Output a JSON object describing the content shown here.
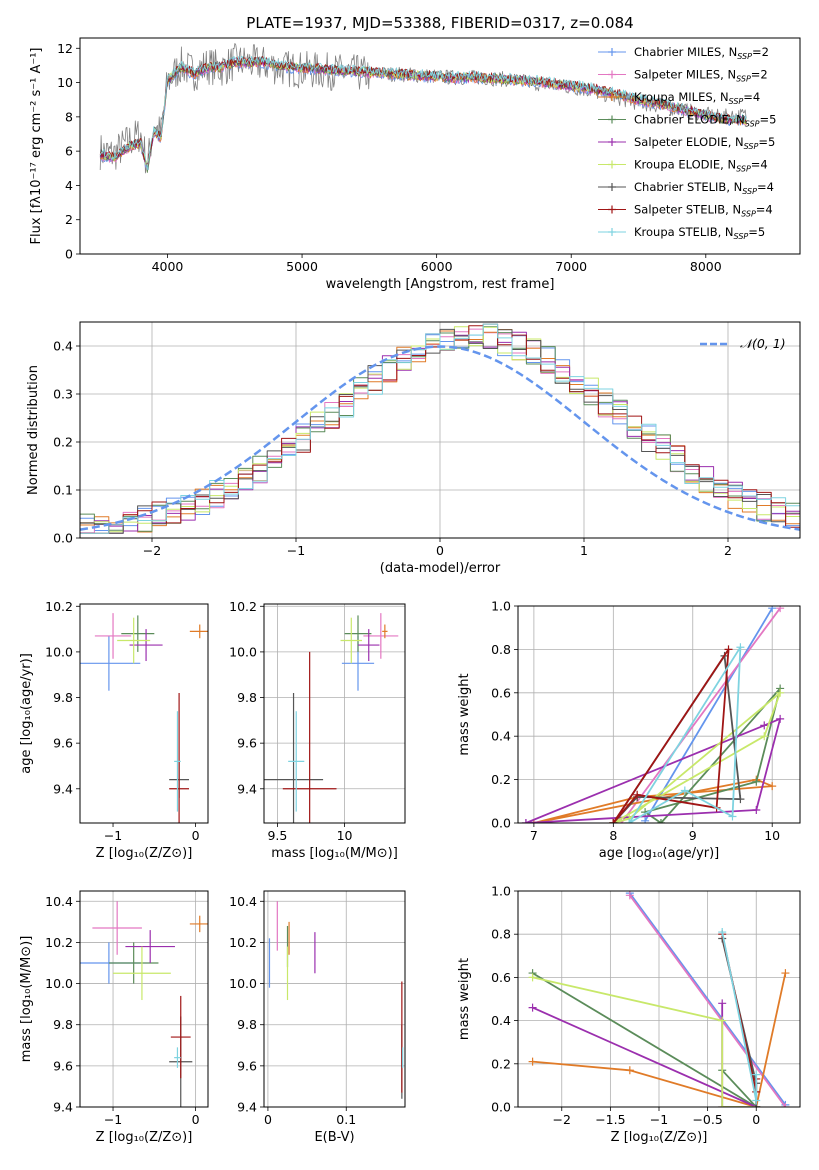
{
  "figure_title": "PLATE=1937, MJD=53388, FIBERID=0317, z=0.084",
  "series_colors": [
    "#6495ed",
    "#e377c2",
    "#e07b28",
    "#5b8c5a",
    "#9b2fae",
    "#c8e86a",
    "#555555",
    "#a01515",
    "#7ed3e0"
  ],
  "chart_data": [
    {
      "id": "spectrum",
      "type": "line",
      "title": "PLATE=1937, MJD=53388, FIBERID=0317, z=0.084",
      "xlabel": "wavelength [Angstrom, rest frame]",
      "ylabel": "Flux [fλ10⁻¹⁷ erg cm⁻² s⁻¹ A⁻¹]",
      "xlim": [
        3350,
        8700
      ],
      "ylim": [
        0,
        12.6
      ],
      "xticks": [
        4000,
        5000,
        6000,
        7000,
        8000
      ],
      "yticks": [
        0,
        2,
        4,
        6,
        8,
        10,
        12
      ],
      "grid": false,
      "legend_position": "top-right",
      "data_color": "#808080",
      "x": [
        3500,
        3600,
        3700,
        3800,
        3850,
        3900,
        3950,
        4000,
        4100,
        4200,
        4300,
        4400,
        4500,
        4700,
        4900,
        5100,
        5300,
        5500,
        5700,
        5900,
        6100,
        6300,
        6500,
        6700,
        6900,
        7100,
        7300,
        7500,
        7700,
        7900,
        8100,
        8300
      ],
      "data_y": [
        6.0,
        5.8,
        6.5,
        7.0,
        5.2,
        7.5,
        7.0,
        10.0,
        11.0,
        10.6,
        11.0,
        10.8,
        11.2,
        11.1,
        10.8,
        10.7,
        10.6,
        10.5,
        10.5,
        10.4,
        10.3,
        10.3,
        10.2,
        10.0,
        9.8,
        9.6,
        9.2,
        8.8,
        8.6,
        8.3,
        8.0,
        8.1
      ],
      "model_y": [
        5.8,
        5.6,
        6.2,
        6.5,
        5.0,
        7.2,
        6.8,
        10.1,
        10.9,
        10.5,
        10.9,
        10.9,
        11.2,
        11.2,
        10.9,
        10.8,
        10.7,
        10.6,
        10.5,
        10.4,
        10.3,
        10.3,
        10.2,
        10.1,
        9.9,
        9.7,
        9.4,
        9.0,
        8.7,
        8.3,
        7.9,
        7.8
      ],
      "legend": [
        {
          "label": "Chabrier MILES, N",
          "sub": "SSP",
          "eq": "=2"
        },
        {
          "label": "Salpeter MILES, N",
          "sub": "SSP",
          "eq": "=2"
        },
        {
          "label": "Kroupa MILES, N",
          "sub": "SSP",
          "eq": "=4"
        },
        {
          "label": "Chabrier ELODIE, N",
          "sub": "SSP",
          "eq": "=5"
        },
        {
          "label": "Salpeter ELODIE, N",
          "sub": "SSP",
          "eq": "=5"
        },
        {
          "label": "Kroupa ELODIE, N",
          "sub": "SSP",
          "eq": "=4"
        },
        {
          "label": "Chabrier STELIB, N",
          "sub": "SSP",
          "eq": "=4"
        },
        {
          "label": "Salpeter STELIB, N",
          "sub": "SSP",
          "eq": "=4"
        },
        {
          "label": "Kroupa STELIB, N",
          "sub": "SSP",
          "eq": "=5"
        }
      ]
    },
    {
      "id": "residuals",
      "type": "line",
      "xlabel": "(data-model)/error",
      "ylabel": "Normed distribution",
      "xlim": [
        -2.5,
        2.5
      ],
      "ylim": [
        0,
        0.45
      ],
      "xticks": [
        -2,
        -1,
        0,
        1,
        2
      ],
      "yticks": [
        0.0,
        0.1,
        0.2,
        0.3,
        0.4
      ],
      "grid": true,
      "legend": [
        {
          "label": "𝒩(0, 1)",
          "color": "#6495ed"
        }
      ],
      "legend_position": "top-right"
    },
    {
      "id": "age_vs_Z",
      "type": "scatter",
      "xlabel": "Z [log₁₀(Z/Z⊙)]",
      "ylabel": "age  [log₁₀(age/yr)]",
      "xlim": [
        -1.4,
        0.15
      ],
      "ylim": [
        9.25,
        10.21
      ],
      "xticks": [
        -1,
        0
      ],
      "yticks": [
        9.4,
        9.6,
        9.8,
        10.0,
        10.2
      ],
      "grid": false,
      "points": [
        {
          "x": -1.05,
          "y": 9.95,
          "xerr": 0.38,
          "yerr": 0.12
        },
        {
          "x": -1.0,
          "y": 10.07,
          "xerr": 0.22,
          "yerr": 0.1
        },
        {
          "x": 0.05,
          "y": 10.09,
          "xerr": 0.12,
          "yerr": 0.03
        },
        {
          "x": -0.7,
          "y": 10.08,
          "xerr": 0.2,
          "yerr": 0.08
        },
        {
          "x": -0.6,
          "y": 10.03,
          "xerr": 0.2,
          "yerr": 0.07
        },
        {
          "x": -0.75,
          "y": 10.05,
          "xerr": 0.2,
          "yerr": 0.1
        },
        {
          "x": -0.2,
          "y": 9.44,
          "xerr": 0.12,
          "yerr": 0.08
        },
        {
          "x": -0.2,
          "y": 9.4,
          "xerr": 0.12,
          "yerr": 0.42
        },
        {
          "x": -0.22,
          "y": 9.52,
          "xerr": 0.04,
          "yerr": 0.22
        }
      ]
    },
    {
      "id": "age_vs_mass",
      "type": "scatter",
      "xlabel": "mass [log₁₀(M/M⊙)]",
      "ylabel": "",
      "xlim": [
        9.4,
        10.45
      ],
      "ylim": [
        9.25,
        10.21
      ],
      "xticks": [
        9.5,
        10.0
      ],
      "yticks": [
        9.4,
        9.6,
        9.8,
        10.0,
        10.2
      ],
      "grid": true,
      "points": [
        {
          "x": 10.1,
          "y": 9.95,
          "xerr": 0.12,
          "yerr": 0.12
        },
        {
          "x": 10.27,
          "y": 10.07,
          "xerr": 0.13,
          "yerr": 0.1
        },
        {
          "x": 10.3,
          "y": 10.09,
          "xerr": 0.02,
          "yerr": 0.03
        },
        {
          "x": 10.1,
          "y": 10.08,
          "xerr": 0.1,
          "yerr": 0.08
        },
        {
          "x": 10.18,
          "y": 10.03,
          "xerr": 0.08,
          "yerr": 0.07
        },
        {
          "x": 10.05,
          "y": 10.05,
          "xerr": 0.08,
          "yerr": 0.1
        },
        {
          "x": 9.62,
          "y": 9.44,
          "xerr": 0.22,
          "yerr": 0.38
        },
        {
          "x": 9.74,
          "y": 9.4,
          "xerr": 0.2,
          "yerr": 0.6
        },
        {
          "x": 9.64,
          "y": 9.52,
          "xerr": 0.06,
          "yerr": 0.22
        }
      ]
    },
    {
      "id": "massweight_vs_age",
      "type": "line",
      "xlabel": "age  [log₁₀(age/yr)]",
      "ylabel": "mass weight",
      "xlim": [
        6.8,
        10.35
      ],
      "ylim": [
        0,
        1.0
      ],
      "xticks": [
        7,
        8,
        9,
        10
      ],
      "yticks": [
        0.0,
        0.2,
        0.4,
        0.6,
        0.8,
        1.0
      ],
      "grid": true,
      "series": [
        {
          "x": [
            8.4,
            10.0
          ],
          "y": [
            0.01,
            0.99
          ]
        },
        {
          "x": [
            8.1,
            10.1
          ],
          "y": [
            0.0,
            0.99
          ]
        },
        {
          "x": [
            7.0,
            9.8,
            10.0,
            8.3,
            7.0
          ],
          "y": [
            0.0,
            0.2,
            0.17,
            0.12,
            0.0
          ]
        },
        {
          "x": [
            8.6,
            10.1,
            9.8,
            8.4,
            8.6
          ],
          "y": [
            0.0,
            0.62,
            0.19,
            0.05,
            0.0
          ]
        },
        {
          "x": [
            6.9,
            9.8,
            10.1,
            9.9,
            6.9
          ],
          "y": [
            0.0,
            0.06,
            0.48,
            0.45,
            0.0
          ]
        },
        {
          "x": [
            8.0,
            9.9,
            10.1,
            8.2,
            8.0
          ],
          "y": [
            0.0,
            0.4,
            0.6,
            0.02,
            0.0
          ]
        },
        {
          "x": [
            8.0,
            9.4,
            9.6,
            8.3,
            8.0
          ],
          "y": [
            0.0,
            0.77,
            0.11,
            0.12,
            0.0
          ]
        },
        {
          "x": [
            8.0,
            9.45,
            9.3,
            8.3,
            8.0
          ],
          "y": [
            0.0,
            0.8,
            0.07,
            0.13,
            0.0
          ]
        },
        {
          "x": [
            8.2,
            9.6,
            9.5,
            8.9,
            8.2
          ],
          "y": [
            0.0,
            0.81,
            0.03,
            0.15,
            0.0
          ]
        }
      ]
    },
    {
      "id": "mass_vs_Z",
      "type": "scatter",
      "xlabel": "Z [log₁₀(Z/Z⊙)]",
      "ylabel": "mass [log₁₀(M/M⊙)]",
      "xlim": [
        -1.4,
        0.15
      ],
      "ylim": [
        9.4,
        10.45
      ],
      "xticks": [
        -1,
        0
      ],
      "yticks": [
        9.4,
        9.6,
        9.8,
        10.0,
        10.2,
        10.4
      ],
      "grid": true,
      "points": [
        {
          "x": -1.05,
          "y": 10.1,
          "xerr": 0.38,
          "yerr": 0.1
        },
        {
          "x": -0.95,
          "y": 10.27,
          "xerr": 0.3,
          "yerr": 0.13
        },
        {
          "x": 0.05,
          "y": 10.29,
          "xerr": 0.12,
          "yerr": 0.04
        },
        {
          "x": -0.75,
          "y": 10.1,
          "xerr": 0.3,
          "yerr": 0.1
        },
        {
          "x": -0.55,
          "y": 10.18,
          "xerr": 0.3,
          "yerr": 0.08
        },
        {
          "x": -0.65,
          "y": 10.05,
          "xerr": 0.35,
          "yerr": 0.13
        },
        {
          "x": -0.18,
          "y": 9.62,
          "xerr": 0.14,
          "yerr": 0.22
        },
        {
          "x": -0.18,
          "y": 9.74,
          "xerr": 0.12,
          "yerr": 0.2
        },
        {
          "x": -0.22,
          "y": 9.64,
          "xerr": 0.04,
          "yerr": 0.05
        }
      ]
    },
    {
      "id": "mass_vs_ebv",
      "type": "scatter",
      "xlabel": "E(B-V)",
      "ylabel": "",
      "xlim": [
        -0.005,
        0.175
      ],
      "ylim": [
        9.4,
        10.45
      ],
      "xticks": [
        0.0,
        0.1
      ],
      "yticks": [
        9.4,
        9.6,
        9.8,
        10.0,
        10.2,
        10.4
      ],
      "grid": true,
      "points": [
        {
          "x": 0.002,
          "y": 10.1,
          "xerr": 0,
          "yerr": 0.12
        },
        {
          "x": 0.012,
          "y": 10.28,
          "xerr": 0,
          "yerr": 0.12
        },
        {
          "x": 0.027,
          "y": 10.22,
          "xerr": 0,
          "yerr": 0.08
        },
        {
          "x": 0.025,
          "y": 10.18,
          "xerr": 0,
          "yerr": 0.1
        },
        {
          "x": 0.06,
          "y": 10.15,
          "xerr": 0,
          "yerr": 0.1
        },
        {
          "x": 0.025,
          "y": 10.05,
          "xerr": 0,
          "yerr": 0.13
        },
        {
          "x": 0.171,
          "y": 9.62,
          "xerr": 0,
          "yerr": 0.18
        },
        {
          "x": 0.171,
          "y": 9.74,
          "xerr": 0,
          "yerr": 0.27
        },
        {
          "x": 0.172,
          "y": 9.64,
          "xerr": 0,
          "yerr": 0.05
        }
      ]
    },
    {
      "id": "massweight_vs_Z",
      "type": "line",
      "xlabel": "Z [log₁₀(Z/Z⊙)]",
      "ylabel": "mass weight",
      "xlim": [
        -2.45,
        0.45
      ],
      "ylim": [
        0,
        1.0
      ],
      "xticks": [
        -2.0,
        -1.5,
        -1.0,
        -0.5,
        0.0
      ],
      "yticks": [
        0.0,
        0.2,
        0.4,
        0.6,
        0.8,
        1.0
      ],
      "grid": true,
      "series": [
        {
          "x": [
            -1.3,
            0.3
          ],
          "y": [
            0.99,
            0.01
          ]
        },
        {
          "x": [
            -1.3,
            0.3
          ],
          "y": [
            0.98,
            0.0
          ]
        },
        {
          "x": [
            -2.3,
            -1.3,
            0.0,
            0.3,
            0.0
          ],
          "y": [
            0.21,
            0.17,
            0.0,
            0.62,
            0.0
          ]
        },
        {
          "x": [
            -2.3,
            0.0,
            -0.35,
            0.0
          ],
          "y": [
            0.62,
            0.0,
            0.17,
            0.0
          ]
        },
        {
          "x": [
            -2.3,
            0.0,
            -0.35,
            -0.35
          ],
          "y": [
            0.46,
            0.0,
            0.0,
            0.48
          ]
        },
        {
          "x": [
            -2.3,
            -0.35,
            -0.35,
            0.0
          ],
          "y": [
            0.6,
            0.4,
            0.0,
            0.0
          ]
        },
        {
          "x": [
            -0.35,
            0.0,
            0.0
          ],
          "y": [
            0.78,
            0.11,
            0.0
          ]
        },
        {
          "x": [
            -0.35,
            0.0,
            0.0
          ],
          "y": [
            0.8,
            0.07,
            0.13
          ]
        },
        {
          "x": [
            -0.35,
            0.0,
            0.0
          ],
          "y": [
            0.81,
            0.03,
            0.15
          ]
        }
      ]
    }
  ]
}
